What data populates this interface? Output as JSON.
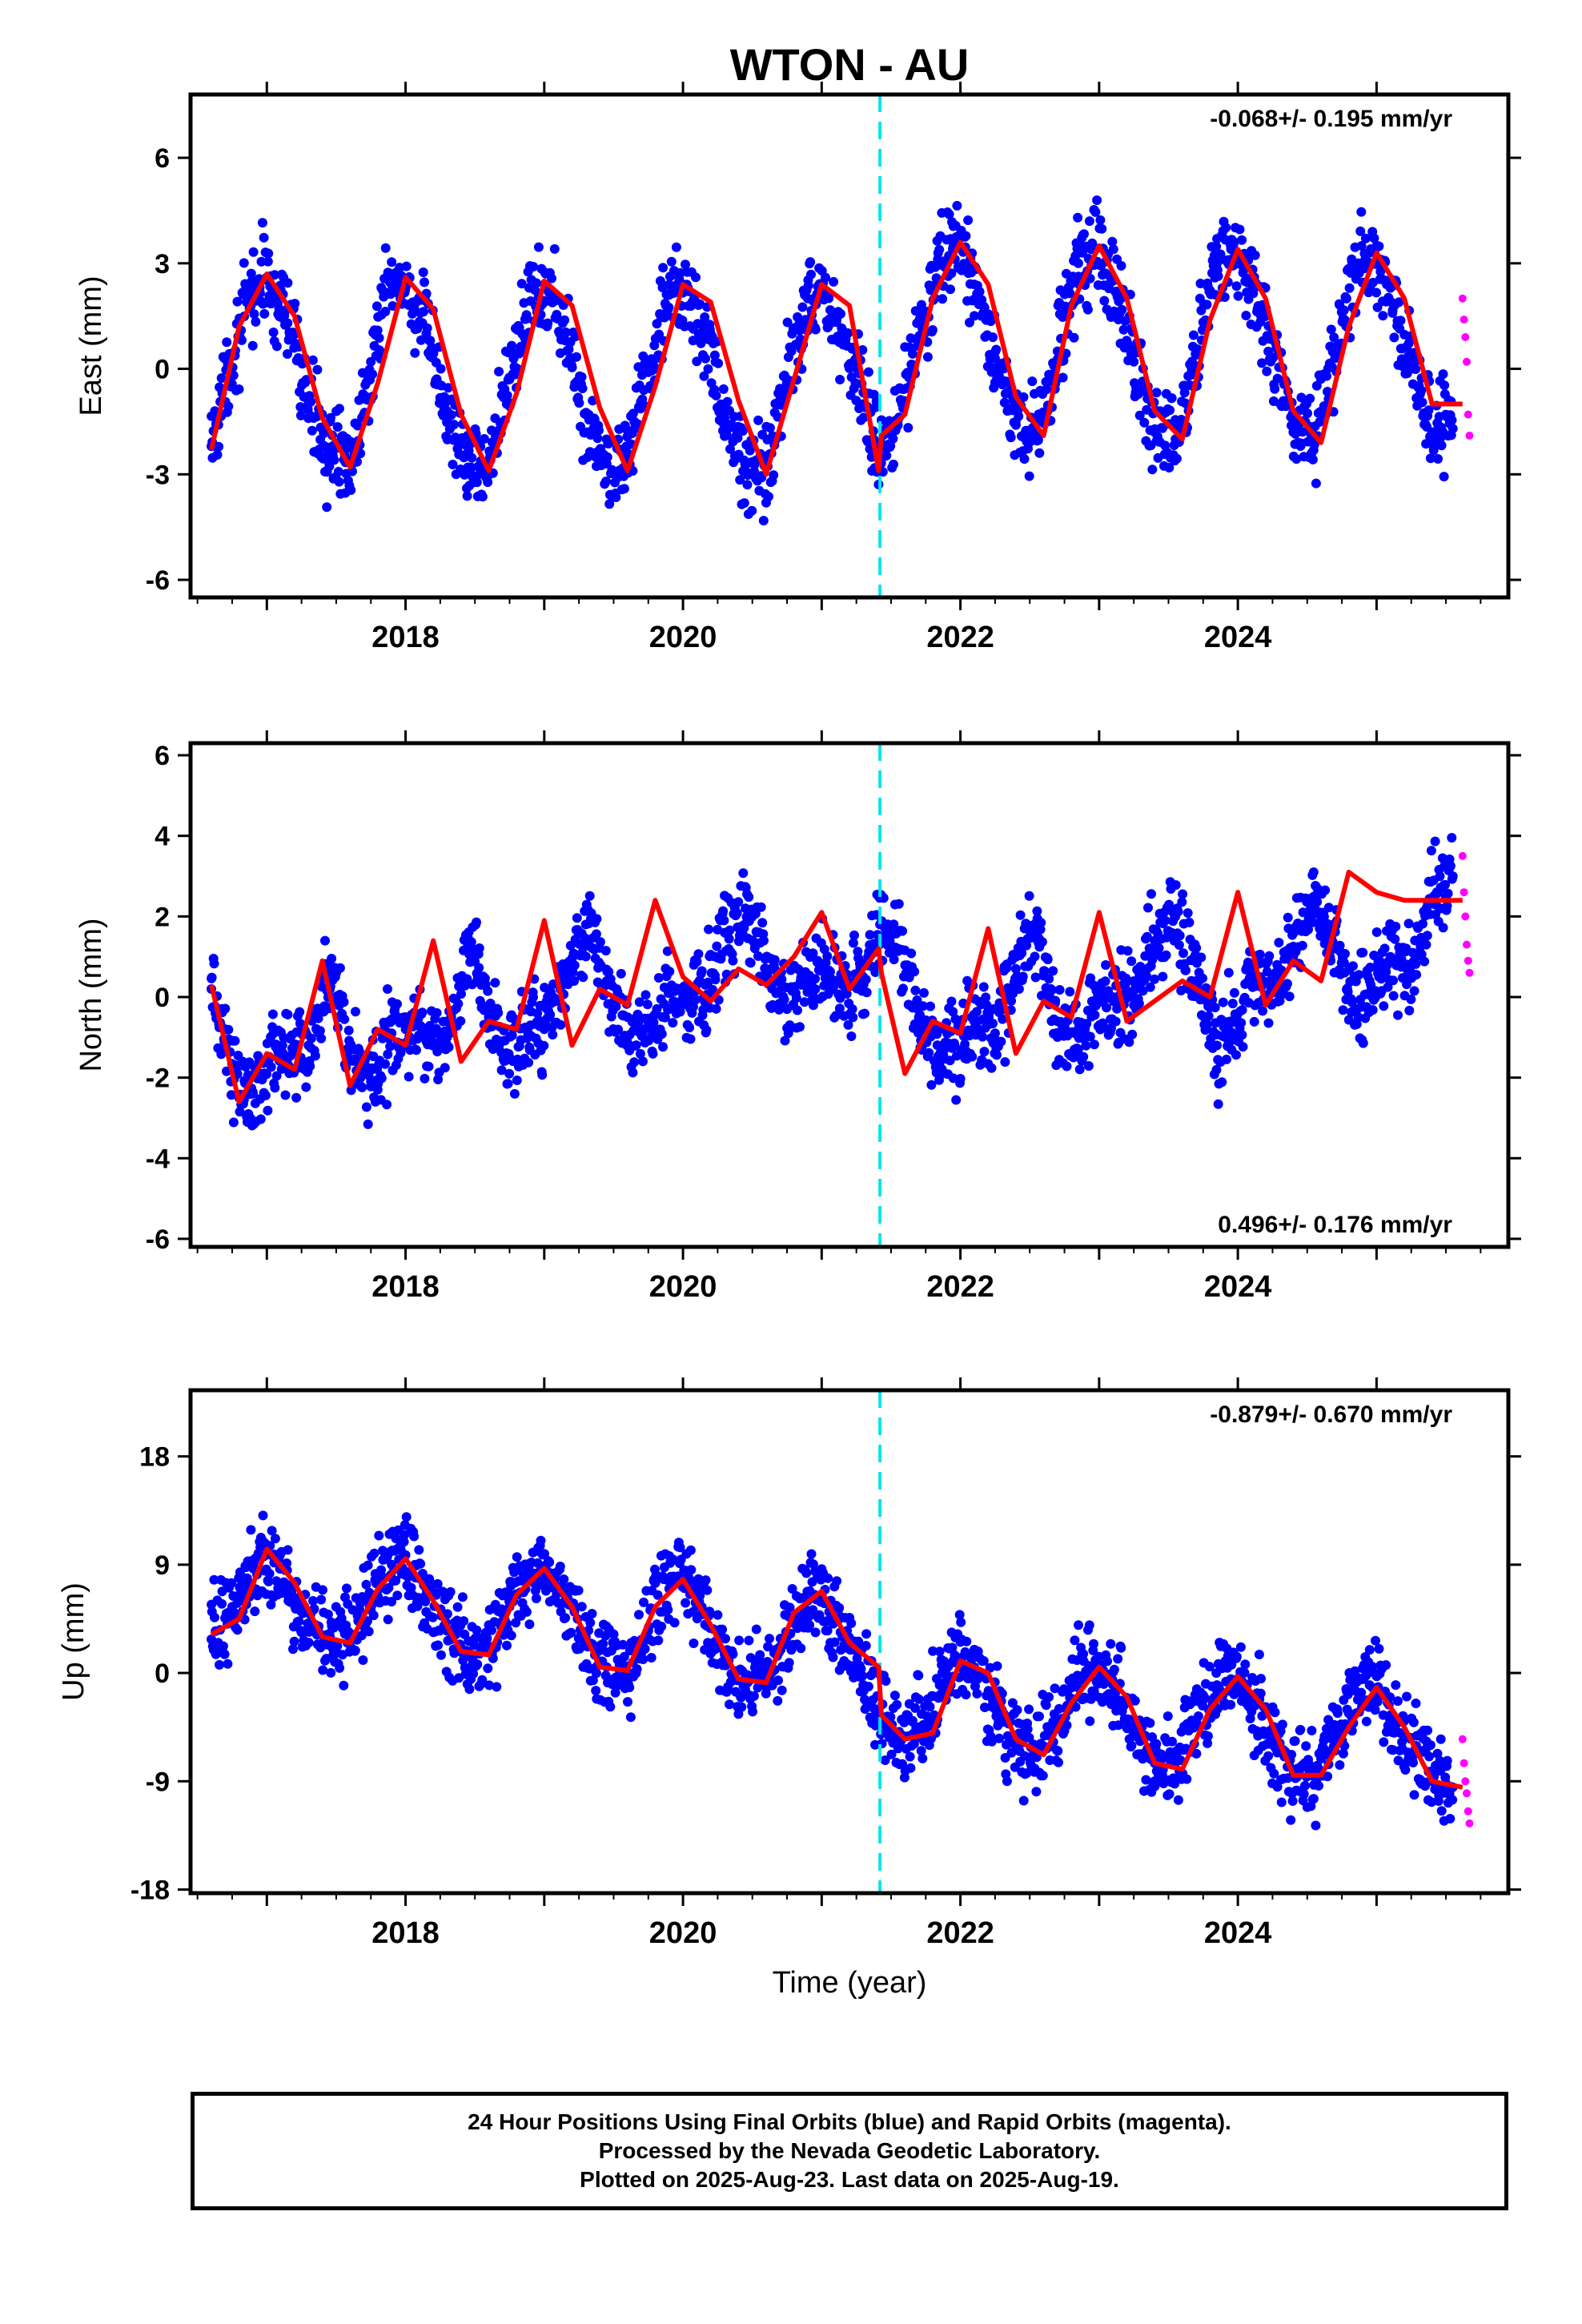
{
  "title": "WTON - AU",
  "caption": {
    "line1": "24 Hour Positions Using Final Orbits (blue) and Rapid Orbits (magenta).",
    "line2": "Processed by the Nevada Geodetic Laboratory.",
    "line3": "Plotted on 2025-Aug-23. Last data on 2025-Aug-19."
  },
  "chart_data": [
    {
      "type": "scatter",
      "title": "WTON - AU",
      "ylabel": "East (mm)",
      "xlabel": "",
      "xlim": [
        2016.45,
        2025.95
      ],
      "ylim": [
        -6.5,
        7.8
      ],
      "xticks": [
        2018,
        2020,
        2022,
        2024
      ],
      "yticks": [
        -6,
        -3,
        0,
        3,
        6
      ],
      "rate_label": "-0.068+/- 0.195 mm/yr",
      "rate_position": "top-right",
      "offset_line_year": 2021.42,
      "grid": false,
      "series": [
        {
          "kind": "points",
          "color": "#0000ff",
          "x": [
            2016.6,
            2016.75,
            2016.9,
            2017.0,
            2017.15,
            2017.3,
            2017.45,
            2017.6,
            2017.75,
            2017.9,
            2018.0,
            2018.15,
            2018.3,
            2018.45,
            2018.6,
            2018.75,
            2018.9,
            2019.0,
            2019.15,
            2019.3,
            2019.45,
            2019.6,
            2019.75,
            2019.9,
            2020.0,
            2020.15,
            2020.3,
            2020.45,
            2020.6,
            2020.75,
            2020.9,
            2021.0,
            2021.15,
            2021.3,
            2021.42,
            2021.55,
            2021.7,
            2021.85,
            2021.95,
            2022.1,
            2022.25,
            2022.4,
            2022.55,
            2022.7,
            2022.85,
            2022.95,
            2023.1,
            2023.25,
            2023.4,
            2023.55,
            2023.7,
            2023.85,
            2023.95,
            2024.1,
            2024.25,
            2024.4,
            2024.55,
            2024.7,
            2024.85,
            2024.95,
            2025.1,
            2025.25,
            2025.4,
            2025.55
          ],
          "y": [
            -2.2,
            0.4,
            2.2,
            2.6,
            1.3,
            -0.9,
            -2.5,
            -2.6,
            0.2,
            2.4,
            2.4,
            1.0,
            -1.2,
            -2.8,
            -2.6,
            -0.3,
            2.3,
            2.4,
            1.0,
            -1.3,
            -2.7,
            -2.4,
            -0.1,
            2.1,
            2.3,
            1.0,
            -1.4,
            -2.9,
            -2.7,
            -0.3,
            2.0,
            2.3,
            1.1,
            -1.0,
            -2.6,
            -1.6,
            0.8,
            3.0,
            3.5,
            2.4,
            0.3,
            -1.6,
            -1.9,
            0.5,
            3.0,
            3.4,
            2.5,
            0.2,
            -1.8,
            -2.0,
            0.4,
            3.0,
            3.4,
            2.4,
            0.3,
            -1.8,
            -2.0,
            0.3,
            2.8,
            3.3,
            2.3,
            0.0,
            -1.8,
            -1.7
          ]
        },
        {
          "kind": "points",
          "color": "#ff00ff",
          "name": "rapid",
          "x": [
            2025.62,
            2025.63,
            2025.64,
            2025.65,
            2025.66,
            2025.67
          ],
          "y": [
            2.0,
            1.4,
            0.9,
            0.2,
            -1.3,
            -1.9
          ]
        },
        {
          "kind": "line",
          "color": "#ff0000",
          "x": [
            2016.6,
            2016.8,
            2017.0,
            2017.2,
            2017.4,
            2017.6,
            2017.8,
            2018.0,
            2018.2,
            2018.4,
            2018.6,
            2018.8,
            2019.0,
            2019.2,
            2019.4,
            2019.6,
            2019.8,
            2020.0,
            2020.2,
            2020.4,
            2020.6,
            2020.8,
            2021.0,
            2021.2,
            2021.41,
            2021.43,
            2021.6,
            2021.8,
            2022.0,
            2022.2,
            2022.4,
            2022.6,
            2022.8,
            2023.0,
            2023.2,
            2023.4,
            2023.6,
            2023.8,
            2024.0,
            2024.2,
            2024.4,
            2024.6,
            2024.8,
            2025.0,
            2025.2,
            2025.4,
            2025.62
          ],
          "y": [
            -2.3,
            1.2,
            2.7,
            1.5,
            -1.4,
            -2.8,
            -0.4,
            2.6,
            1.7,
            -1.3,
            -2.9,
            -0.7,
            2.5,
            1.8,
            -1.1,
            -2.9,
            -0.5,
            2.4,
            1.9,
            -0.9,
            -3.0,
            -0.3,
            2.4,
            1.8,
            -2.9,
            -1.9,
            -1.3,
            2.0,
            3.6,
            2.4,
            -0.8,
            -1.9,
            1.8,
            3.5,
            2.0,
            -1.2,
            -2.0,
            1.4,
            3.4,
            2.0,
            -1.2,
            -2.1,
            1.2,
            3.3,
            2.0,
            -1.0,
            -1.0
          ]
        }
      ]
    },
    {
      "type": "scatter",
      "ylabel": "North (mm)",
      "xlabel": "",
      "xlim": [
        2016.45,
        2025.95
      ],
      "ylim": [
        -6.2,
        6.3
      ],
      "xticks": [
        2018,
        2020,
        2022,
        2024
      ],
      "yticks": [
        -6,
        -4,
        -2,
        0,
        2,
        4,
        6
      ],
      "rate_label": "0.496+/- 0.176 mm/yr",
      "rate_position": "bottom-right",
      "offset_line_year": 2021.42,
      "grid": false,
      "series": [
        {
          "kind": "points",
          "color": "#0000ff",
          "x": [
            2016.6,
            2016.75,
            2016.9,
            2017.0,
            2017.15,
            2017.3,
            2017.45,
            2017.6,
            2017.75,
            2017.9,
            2018.0,
            2018.15,
            2018.3,
            2018.45,
            2018.6,
            2018.75,
            2018.9,
            2019.0,
            2019.15,
            2019.3,
            2019.45,
            2019.6,
            2019.75,
            2019.9,
            2020.0,
            2020.15,
            2020.3,
            2020.45,
            2020.6,
            2020.75,
            2020.9,
            2021.0,
            2021.15,
            2021.3,
            2021.42,
            2021.55,
            2021.7,
            2021.85,
            2021.95,
            2022.1,
            2022.25,
            2022.4,
            2022.55,
            2022.7,
            2022.85,
            2022.95,
            2023.1,
            2023.25,
            2023.4,
            2023.55,
            2023.7,
            2023.85,
            2023.95,
            2024.1,
            2024.25,
            2024.4,
            2024.55,
            2024.7,
            2024.85,
            2024.95,
            2025.1,
            2025.25,
            2025.4,
            2025.55
          ],
          "y": [
            0.2,
            -1.8,
            -2.4,
            -1.6,
            -1.5,
            -1.2,
            0.8,
            -1.2,
            -2.1,
            -0.9,
            -0.8,
            -1.1,
            -1.0,
            1.3,
            -0.5,
            -1.5,
            -0.7,
            -0.8,
            0.6,
            1.8,
            0.4,
            -1.0,
            -0.7,
            0.1,
            0.1,
            0.0,
            1.6,
            2.2,
            0.7,
            -0.3,
            0.4,
            0.7,
            0.3,
            0.5,
            1.8,
            1.2,
            -0.5,
            -1.6,
            -1.2,
            -0.6,
            -0.9,
            0.7,
            1.6,
            -0.6,
            -1.3,
            -0.4,
            0.0,
            -0.2,
            1.4,
            2.0,
            0.4,
            -1.2,
            -0.6,
            0.4,
            0.2,
            1.0,
            2.5,
            1.2,
            -0.3,
            0.4,
            1.0,
            0.6,
            2.4,
            3.0
          ]
        },
        {
          "kind": "points",
          "color": "#ff00ff",
          "name": "rapid",
          "x": [
            2025.62,
            2025.63,
            2025.64,
            2025.65,
            2025.66,
            2025.67
          ],
          "y": [
            3.5,
            2.6,
            2.0,
            1.3,
            0.9,
            0.6
          ]
        },
        {
          "kind": "line",
          "color": "#ff0000",
          "x": [
            2016.6,
            2016.8,
            2017.0,
            2017.2,
            2017.4,
            2017.6,
            2017.8,
            2018.0,
            2018.2,
            2018.4,
            2018.6,
            2018.8,
            2019.0,
            2019.2,
            2019.4,
            2019.6,
            2019.8,
            2020.0,
            2020.2,
            2020.4,
            2020.6,
            2020.8,
            2021.0,
            2021.2,
            2021.41,
            2021.43,
            2021.6,
            2021.8,
            2022.0,
            2022.2,
            2022.4,
            2022.6,
            2022.8,
            2023.0,
            2023.2,
            2023.4,
            2023.6,
            2023.8,
            2024.0,
            2024.2,
            2024.4,
            2024.6,
            2024.8,
            2025.0,
            2025.2,
            2025.4,
            2025.62
          ],
          "y": [
            0.3,
            -2.6,
            -1.4,
            -1.8,
            0.9,
            -2.2,
            -0.8,
            -1.2,
            1.4,
            -1.6,
            -0.6,
            -0.8,
            1.9,
            -1.2,
            0.2,
            -0.2,
            2.4,
            0.5,
            -0.1,
            0.7,
            0.3,
            1.0,
            2.1,
            0.2,
            1.2,
            0.6,
            -1.9,
            -0.6,
            -0.9,
            1.7,
            -1.4,
            -0.1,
            -0.5,
            2.1,
            -0.6,
            -0.1,
            0.4,
            0.0,
            2.6,
            -0.2,
            0.9,
            0.4,
            3.1,
            2.6,
            2.4,
            2.4,
            2.4
          ]
        }
      ]
    },
    {
      "type": "scatter",
      "ylabel": "Up (mm)",
      "xlabel": "Time (year)",
      "xlim": [
        2016.45,
        2025.95
      ],
      "ylim": [
        -18.3,
        23.5
      ],
      "xticks": [
        2018,
        2020,
        2022,
        2024
      ],
      "yticks": [
        -18,
        -9,
        0,
        9,
        18
      ],
      "rate_label": "-0.879+/- 0.670 mm/yr",
      "rate_position": "top-right",
      "offset_line_year": 2021.42,
      "grid": false,
      "series": [
        {
          "kind": "points",
          "color": "#0000ff",
          "x": [
            2016.6,
            2016.75,
            2016.9,
            2017.0,
            2017.15,
            2017.3,
            2017.45,
            2017.6,
            2017.75,
            2017.9,
            2018.0,
            2018.15,
            2018.3,
            2018.45,
            2018.6,
            2018.75,
            2018.9,
            2019.0,
            2019.15,
            2019.3,
            2019.45,
            2019.6,
            2019.75,
            2019.9,
            2020.0,
            2020.15,
            2020.3,
            2020.45,
            2020.6,
            2020.75,
            2020.9,
            2021.0,
            2021.15,
            2021.3,
            2021.42,
            2021.55,
            2021.7,
            2021.85,
            2021.95,
            2022.1,
            2022.25,
            2022.4,
            2022.55,
            2022.7,
            2022.85,
            2022.95,
            2023.1,
            2023.25,
            2023.4,
            2023.55,
            2023.7,
            2023.85,
            2023.95,
            2024.1,
            2024.25,
            2024.4,
            2024.55,
            2024.7,
            2024.85,
            2024.95,
            2025.1,
            2025.25,
            2025.4,
            2025.55
          ],
          "y": [
            2.8,
            5.5,
            9.0,
            10.5,
            6.5,
            3.8,
            2.5,
            3.0,
            6.5,
            9.0,
            9.8,
            7.0,
            3.5,
            1.5,
            2.0,
            5.5,
            8.0,
            8.9,
            6.5,
            3.0,
            0.5,
            -0.5,
            3.5,
            7.0,
            8.0,
            5.0,
            1.5,
            -1.0,
            -0.5,
            3.0,
            6.0,
            6.5,
            3.0,
            -1.0,
            -3.5,
            -5.5,
            -4.5,
            -1.0,
            1.0,
            0.5,
            -3.0,
            -6.0,
            -7.0,
            -4.5,
            -0.5,
            0.5,
            -1.0,
            -4.5,
            -7.5,
            -7.5,
            -4.0,
            -1.0,
            -0.5,
            -2.0,
            -5.5,
            -8.5,
            -8.5,
            -5.0,
            -1.5,
            -1.0,
            -3.5,
            -7.0,
            -9.0,
            -9.5
          ]
        },
        {
          "kind": "points",
          "color": "#ff00ff",
          "name": "rapid",
          "x": [
            2025.62,
            2025.63,
            2025.64,
            2025.65,
            2025.66,
            2025.67
          ],
          "y": [
            -5.5,
            -7.5,
            -9.0,
            -10.0,
            -11.5,
            -12.5
          ]
        },
        {
          "kind": "line",
          "color": "#ff0000",
          "x": [
            2016.6,
            2016.8,
            2017.0,
            2017.2,
            2017.4,
            2017.6,
            2017.8,
            2018.0,
            2018.2,
            2018.4,
            2018.6,
            2018.8,
            2019.0,
            2019.2,
            2019.4,
            2019.6,
            2019.8,
            2020.0,
            2020.2,
            2020.4,
            2020.6,
            2020.8,
            2021.0,
            2021.2,
            2021.41,
            2021.43,
            2021.6,
            2021.8,
            2022.0,
            2022.2,
            2022.4,
            2022.6,
            2022.8,
            2023.0,
            2023.2,
            2023.4,
            2023.6,
            2023.8,
            2024.0,
            2024.2,
            2024.4,
            2024.6,
            2024.8,
            2025.0,
            2025.2,
            2025.4,
            2025.62
          ],
          "y": [
            3.2,
            4.5,
            10.3,
            7.5,
            3.0,
            2.5,
            7.0,
            9.5,
            6.0,
            1.8,
            1.5,
            6.5,
            8.7,
            5.5,
            0.5,
            0.2,
            5.5,
            7.8,
            4.0,
            -0.5,
            -0.8,
            5.0,
            6.8,
            2.5,
            0.5,
            -3.5,
            -5.5,
            -5.0,
            1.0,
            0.0,
            -5.5,
            -6.8,
            -2.5,
            0.5,
            -2.0,
            -7.5,
            -8.0,
            -3.0,
            -0.3,
            -3.0,
            -8.5,
            -8.5,
            -4.5,
            -1.2,
            -4.5,
            -9.0,
            -9.5
          ]
        }
      ]
    }
  ]
}
